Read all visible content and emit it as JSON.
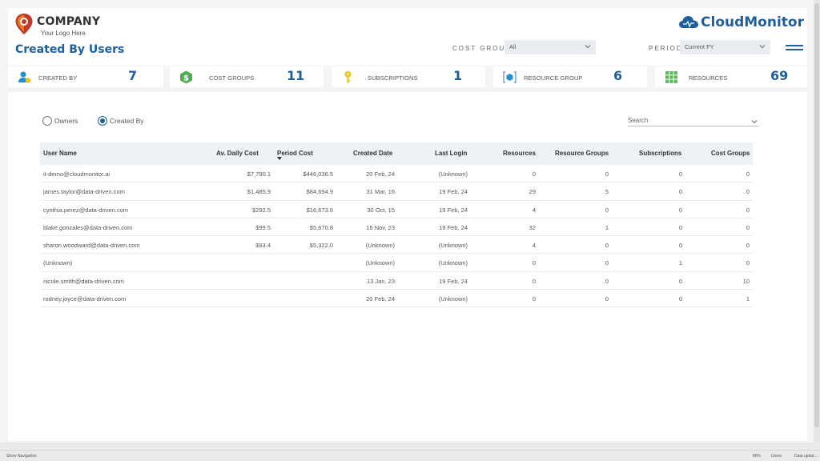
{
  "header": {
    "logo_title": "COMPANY",
    "logo_sub": "Your Logo Here",
    "page_title": "Created By Users",
    "brand": "CloudMonitor",
    "filters": {
      "cost_group_label": "COST GROUP",
      "cost_group_value": "All",
      "period_label": "PERIOD",
      "period_value": "Current FY"
    }
  },
  "kpis": [
    {
      "label": "CREATED BY",
      "value": "7",
      "icon": "user-icon"
    },
    {
      "label": "COST GROUPS",
      "value": "11",
      "icon": "dollar-icon"
    },
    {
      "label": "SUBSCRIPTIONS",
      "value": "1",
      "icon": "key-icon"
    },
    {
      "label": "RESOURCE GROUP",
      "value": "6",
      "icon": "resource-group-icon"
    },
    {
      "label": "RESOURCES",
      "value": "69",
      "icon": "grid-icon"
    }
  ],
  "toggle": {
    "owners_label": "Owners",
    "created_by_label": "Created By",
    "selected": "Created By"
  },
  "search": {
    "placeholder": "Search"
  },
  "table": {
    "columns": [
      "User Name",
      "Av. Daily Cost",
      "Period Cost",
      "Created Date",
      "Last Login",
      "Resources",
      "Resource Groups",
      "Subscriptions",
      "Cost Groups"
    ],
    "rows": [
      [
        "it-demo@cloudmonitor.ai",
        "$7,790.1",
        "$446,036.5",
        "20 Feb, 24",
        "(Unknown)",
        "0",
        "0",
        "0",
        "0"
      ],
      [
        "james.taylor@data-driven.com",
        "$1,485.9",
        "$84,694.9",
        "31 Mar, 16",
        "19 Feb, 24",
        "29",
        "5",
        "0",
        "0"
      ],
      [
        "cynthia.perez@data-driven.com",
        "$292.5",
        "$16,673.6",
        "30 Oct, 15",
        "19 Feb, 24",
        "4",
        "0",
        "0",
        "0"
      ],
      [
        "blake.gonzales@data-driven.com",
        "$99.5",
        "$5,670.8",
        "16 Nov, 23",
        "19 Feb, 24",
        "32",
        "1",
        "0",
        "0"
      ],
      [
        "sharon.woodward@data-driven.com",
        "$93.4",
        "$5,322.0",
        "(Unknown)",
        "(Unknown)",
        "4",
        "0",
        "0",
        "0"
      ],
      [
        "(Unknown)",
        "",
        "",
        "(Unknown)",
        "(Unknown)",
        "0",
        "0",
        "1",
        "0"
      ],
      [
        "nicole.smith@data-driven.com",
        "",
        "",
        "13 Jan, 23",
        "19 Feb, 24",
        "0",
        "0",
        "0",
        "10"
      ],
      [
        "rodney.joyce@data-driven.com",
        "",
        "",
        "20 Feb, 24",
        "(Unknown)",
        "0",
        "0",
        "0",
        "1"
      ]
    ]
  },
  "statusbar": {
    "left": "Show Navigation",
    "zoom": "86%",
    "page": "Users",
    "right": "Data updat..."
  },
  "colors": {
    "accent": "#1f5f9c",
    "kpi_green": "#4caf50",
    "kpi_yellow": "#f4c20d"
  }
}
